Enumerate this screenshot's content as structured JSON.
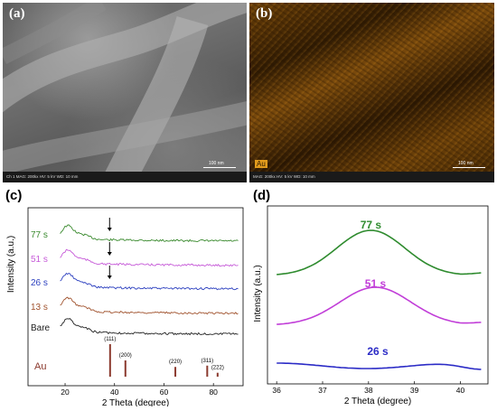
{
  "panels": {
    "a": {
      "label": "(a)",
      "info": "Ch 1   MAG: 200kx   HV: 5 kV   WD: 10 mm",
      "scale": "100 nm"
    },
    "b": {
      "label": "(b)",
      "info": "MAG: 200kx   HV: 5 kV   WD: 10 mm",
      "scale": "100 nm",
      "element": "Au"
    },
    "c": {
      "label": "(c)"
    },
    "d": {
      "label": "(d)"
    }
  },
  "chart_data": [
    {
      "type": "line",
      "panel": "(c)",
      "xlabel": "2 Theta (degree)",
      "ylabel": "Intensity (a.u.)",
      "xlim": [
        5,
        92
      ],
      "xticks": [
        20,
        40,
        60,
        80
      ],
      "legend": "left-labels",
      "series": [
        {
          "name": "77 s",
          "color": "#3a8a2e"
        },
        {
          "name": "51 s",
          "color": "#c65ad8"
        },
        {
          "name": "26 s",
          "color": "#2b3fbf"
        },
        {
          "name": "13 s",
          "color": "#a0522d"
        },
        {
          "name": "Bare",
          "color": "#222222"
        }
      ],
      "arrows_at_x": 38,
      "reference": {
        "name": "Au",
        "color": "#8b3a2e",
        "peaks": [
          {
            "x": 38.2,
            "label": "(111)",
            "rel": 1.0
          },
          {
            "x": 44.4,
            "label": "(200)",
            "rel": 0.5
          },
          {
            "x": 64.6,
            "label": "(220)",
            "rel": 0.3
          },
          {
            "x": 77.5,
            "label": "(311)",
            "rel": 0.34
          },
          {
            "x": 81.7,
            "label": "(222)",
            "rel": 0.12
          }
        ]
      }
    },
    {
      "type": "line",
      "panel": "(d)",
      "xlabel": "2 Theta (degree)",
      "ylabel": "Intensity (a.u.)",
      "xlim": [
        35.8,
        40.6
      ],
      "xticks": [
        36,
        37,
        38,
        39,
        40
      ],
      "series": [
        {
          "name": "77 s",
          "color": "#2e8b2e",
          "peak_x": 38.05
        },
        {
          "name": "51 s",
          "color": "#c13ed8",
          "peak_x": 38.15
        },
        {
          "name": "26 s",
          "color": "#2b2bc6",
          "peak_x": 38.2
        }
      ]
    }
  ]
}
